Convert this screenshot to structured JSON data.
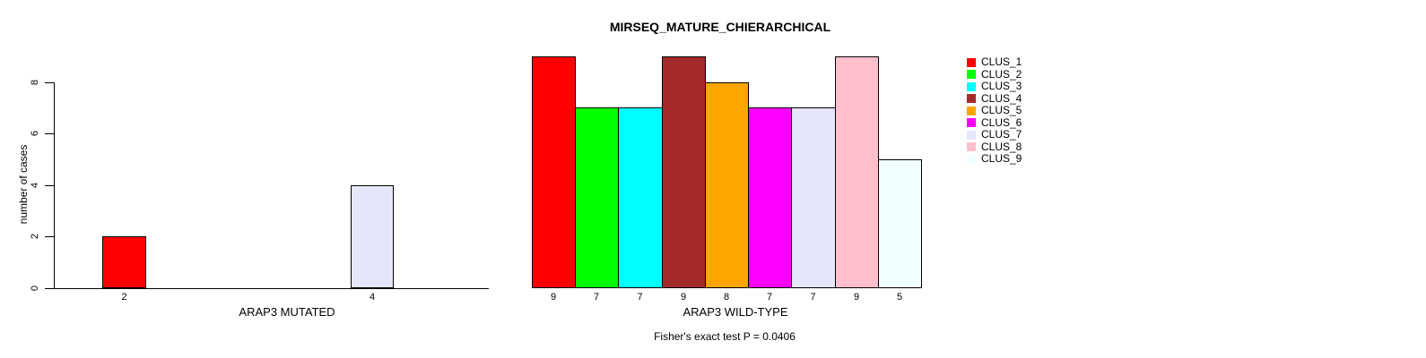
{
  "title": "MIRSEQ_MATURE_CHIERARCHICAL",
  "annotation": "Fisher's exact test P = 0.0406",
  "palette": {
    "red": "#FF0000",
    "green": "#00FF00",
    "cyan": "#00FFFF",
    "brown": "#A52A2A",
    "orange": "#FFA500",
    "magenta": "#FF00FF",
    "lavender": "#E6E6FA",
    "pink": "#FFC0CB",
    "azure": "#F0FFFF"
  },
  "chart_data": [
    {
      "type": "bar",
      "title": "MIRSEQ_MATURE_CHIERARCHICAL",
      "xlabel": "ARAP3 MUTATED",
      "ylabel": "number of cases",
      "categories": [
        "CLUS_1",
        "CLUS_7"
      ],
      "values": [
        2,
        4
      ],
      "bar_labels": [
        "2",
        "4"
      ],
      "bar_colors": [
        "#FF0000",
        "#E6E6FA"
      ],
      "yticks": [
        0,
        2,
        4,
        6,
        8
      ],
      "ylim": [
        0,
        9
      ],
      "grid": false,
      "legend_position": "none"
    },
    {
      "type": "bar",
      "title": "",
      "xlabel": "ARAP3 WILD-TYPE",
      "ylabel": "",
      "categories": [
        "CLUS_1",
        "CLUS_2",
        "CLUS_3",
        "CLUS_4",
        "CLUS_5",
        "CLUS_6",
        "CLUS_7",
        "CLUS_8",
        "CLUS_9"
      ],
      "values": [
        9,
        7,
        7,
        9,
        8,
        7,
        7,
        9,
        5
      ],
      "bar_labels": [
        "9",
        "7",
        "7",
        "9",
        "8",
        "7",
        "7",
        "9",
        "5"
      ],
      "bar_colors": [
        "#FF0000",
        "#00FF00",
        "#00FFFF",
        "#A52A2A",
        "#FFA500",
        "#FF00FF",
        "#E6E6FA",
        "#FFC0CB",
        "#F0FFFF"
      ],
      "ylim": [
        0,
        9
      ],
      "grid": false,
      "legend_position": "right"
    }
  ],
  "legend": {
    "entries": [
      {
        "label": "CLUS_1",
        "color": "#FF0000"
      },
      {
        "label": "CLUS_2",
        "color": "#00FF00"
      },
      {
        "label": "CLUS_3",
        "color": "#00FFFF"
      },
      {
        "label": "CLUS_4",
        "color": "#A52A2A"
      },
      {
        "label": "CLUS_5",
        "color": "#FFA500"
      },
      {
        "label": "CLUS_6",
        "color": "#FF00FF"
      },
      {
        "label": "CLUS_7",
        "color": "#E6E6FA"
      },
      {
        "label": "CLUS_8",
        "color": "#FFC0CB"
      },
      {
        "label": "CLUS_9",
        "color": "#F0FFFF"
      }
    ]
  }
}
